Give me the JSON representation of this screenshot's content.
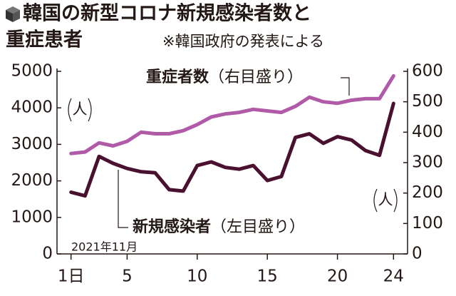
{
  "chart_data": {
    "type": "line",
    "title": "韓国の新型コロナ新規感染者数と",
    "title_line2": "重症患者",
    "subtitle": "※韓国政府の発表による",
    "x": [
      1,
      2,
      3,
      4,
      5,
      6,
      7,
      8,
      9,
      10,
      11,
      12,
      13,
      14,
      15,
      16,
      17,
      18,
      19,
      20,
      21,
      22,
      23,
      24
    ],
    "xlim": [
      0,
      25
    ],
    "xticks": [
      {
        "value": 1,
        "label": "1日"
      },
      5,
      10,
      15,
      20,
      24
    ],
    "x_note": "2021年11月",
    "ylim": [
      0,
      5000
    ],
    "yticks": [
      0,
      1000,
      2000,
      3000,
      4000,
      5000
    ],
    "y_unit": "人",
    "y2lim": [
      0,
      600
    ],
    "y2ticks": [
      0,
      100,
      200,
      300,
      400,
      500,
      600
    ],
    "y2_unit": "人",
    "series": [
      {
        "name": "重症者数",
        "note": "（右目盛り）",
        "color": "#b05aa8",
        "axis": "y2",
        "values": [
          330,
          335,
          365,
          355,
          370,
          400,
          395,
          395,
          405,
          425,
          450,
          460,
          465,
          475,
          470,
          465,
          485,
          515,
          500,
          495,
          505,
          510,
          510,
          585
        ]
      },
      {
        "name": "新規感染者",
        "note": "（左目盛り）",
        "color": "#4a1030",
        "values": [
          1690,
          1590,
          2670,
          2480,
          2340,
          2250,
          2220,
          1760,
          1720,
          2420,
          2520,
          2370,
          2320,
          2420,
          2010,
          2120,
          3190,
          3290,
          3030,
          3210,
          3120,
          2830,
          2700,
          4120
        ]
      }
    ]
  }
}
